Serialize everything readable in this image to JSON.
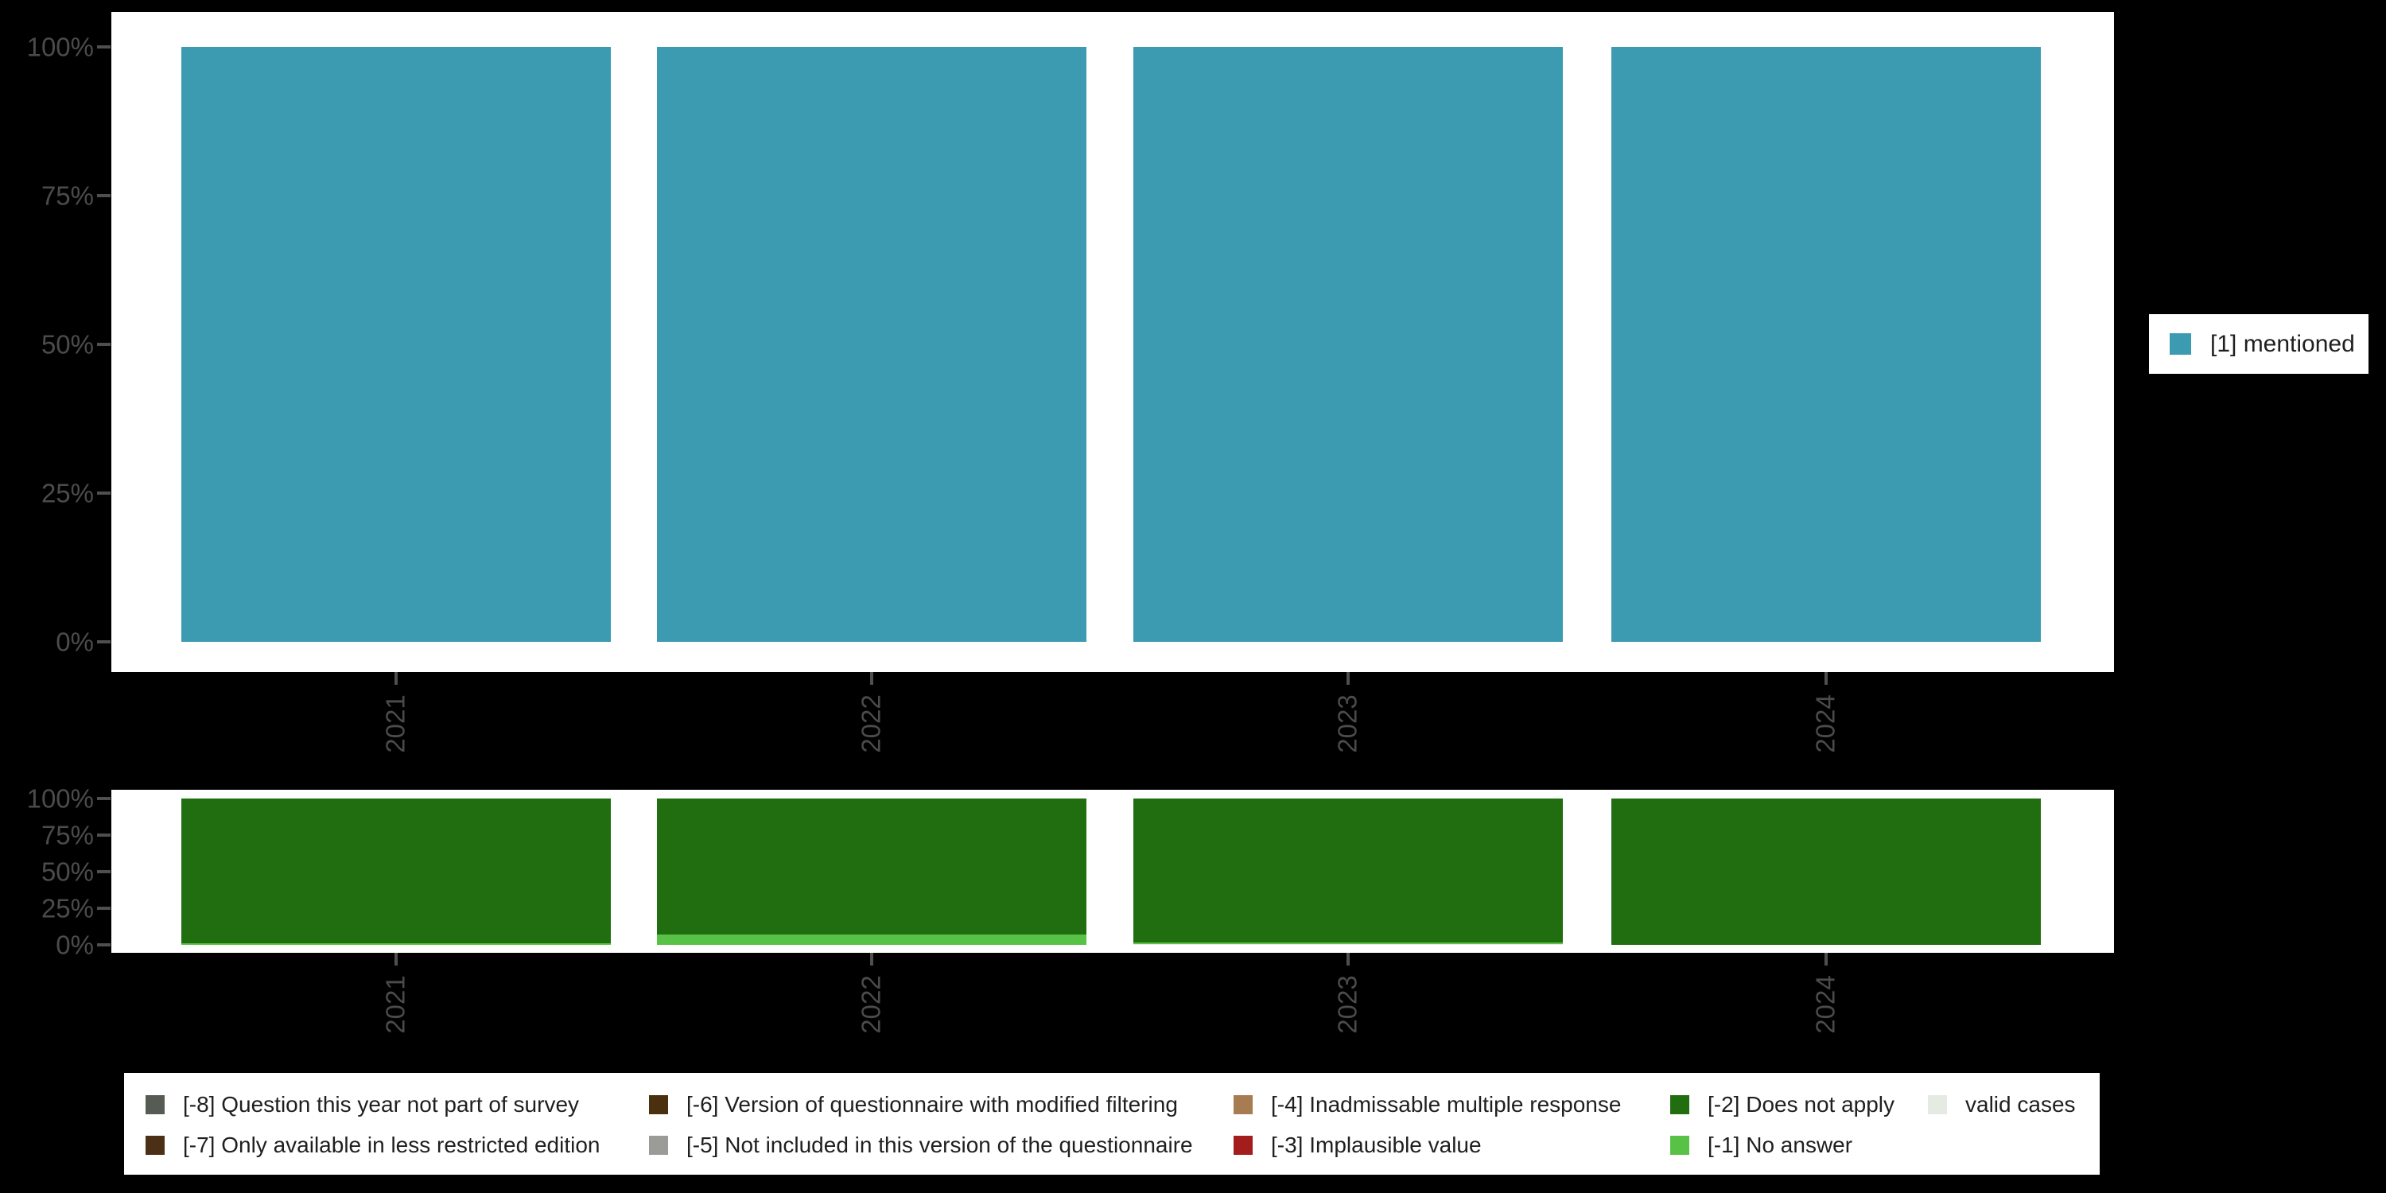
{
  "page": {
    "background": "#000000"
  },
  "chart_data": [
    {
      "id": "mentions-by-year",
      "type": "bar",
      "stacked": true,
      "categories": [
        "2021",
        "2022",
        "2023",
        "2024"
      ],
      "series": [
        {
          "name": "[1] mentioned",
          "color": "#3c9ab1",
          "values": [
            100,
            100,
            100,
            100
          ]
        }
      ],
      "y_ticks": [
        "0%",
        "25%",
        "50%",
        "75%",
        "100%"
      ],
      "ylim": [
        0,
        100
      ],
      "grid": false,
      "legend_position": "right",
      "x_label_rotation": -90
    },
    {
      "id": "missing-values-by-year",
      "type": "bar",
      "stacked": true,
      "categories": [
        "2021",
        "2022",
        "2023",
        "2024"
      ],
      "series": [
        {
          "name": "valid cases",
          "color": "#e5eae2",
          "values": [
            0,
            0,
            1,
            0
          ]
        },
        {
          "name": "[-1] No answer",
          "color": "#58c246",
          "values": [
            1,
            7,
            0.5,
            0
          ]
        },
        {
          "name": "[-2] Does not apply",
          "color": "#216e10",
          "values": [
            99,
            93,
            98.5,
            100
          ]
        }
      ],
      "y_ticks": [
        "0%",
        "25%",
        "50%",
        "75%",
        "100%"
      ],
      "ylim": [
        0,
        100
      ],
      "grid": false,
      "legend_position": "bottom",
      "x_label_rotation": -90
    }
  ],
  "right_legend": {
    "items": [
      {
        "label": "[1] mentioned",
        "color": "#3c9ab1"
      }
    ]
  },
  "bottom_legend": {
    "rows": [
      [
        {
          "label": "[-8] Question this year not part of survey",
          "color": "#565c53"
        },
        {
          "label": "[-6] Version of questionnaire with modified filtering",
          "color": "#4a300e"
        },
        {
          "label": "[-4] Inadmissable multiple response",
          "color": "#a67c50"
        },
        {
          "label": "[-2] Does not apply",
          "color": "#216e10"
        },
        {
          "label": "valid cases",
          "color": "#e5eae2"
        }
      ],
      [
        {
          "label": "[-7] Only available in less restricted edition",
          "color": "#4b2f17"
        },
        {
          "label": "[-5] Not included in this version of the questionnaire",
          "color": "#9b9b97"
        },
        {
          "label": "[-3] Implausible value",
          "color": "#a31d1d"
        },
        {
          "label": "[-1] No answer",
          "color": "#58c246"
        }
      ]
    ]
  }
}
